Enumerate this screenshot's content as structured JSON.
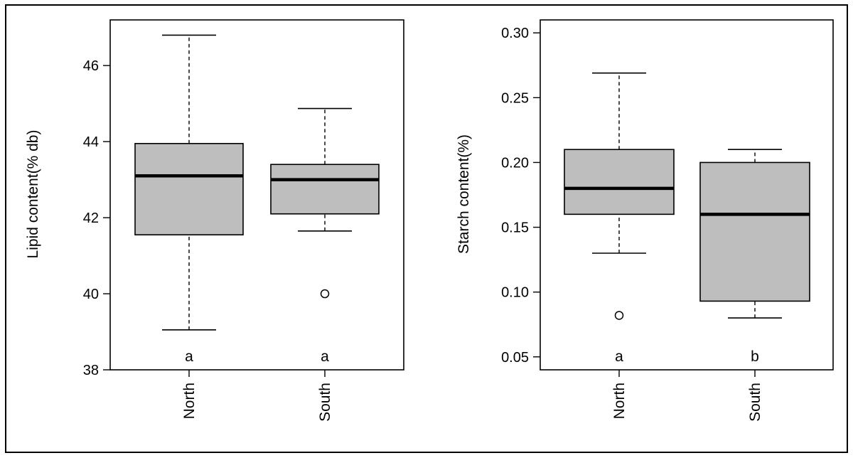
{
  "chart_data": [
    {
      "type": "boxplot",
      "ylabel": "Lipid content(% db)",
      "ylim": [
        38,
        47.2
      ],
      "yticks": [
        38,
        40,
        42,
        44,
        46
      ],
      "categories": [
        "North",
        "South"
      ],
      "box_color": "#bebebe",
      "boxes": [
        {
          "category": "North",
          "whisker_low": 39.05,
          "q1": 41.55,
          "median": 43.1,
          "q3": 43.95,
          "whisker_high": 46.8,
          "outliers": [],
          "group_letter": "a"
        },
        {
          "category": "South",
          "whisker_low": 41.65,
          "q1": 42.1,
          "median": 43.0,
          "q3": 43.4,
          "whisker_high": 44.87,
          "outliers": [
            40.0
          ],
          "group_letter": "a"
        }
      ]
    },
    {
      "type": "boxplot",
      "ylabel": "Starch content(%)",
      "ylim": [
        0.04,
        0.31
      ],
      "yticks": [
        0.05,
        0.1,
        0.15,
        0.2,
        0.25,
        0.3
      ],
      "ytick_labels": [
        "0.05",
        "0.10",
        "0.15",
        "0.20",
        "0.25",
        "0.30"
      ],
      "categories": [
        "North",
        "South"
      ],
      "box_color": "#bebebe",
      "boxes": [
        {
          "category": "North",
          "whisker_low": 0.13,
          "q1": 0.16,
          "median": 0.18,
          "q3": 0.21,
          "whisker_high": 0.269,
          "outliers": [
            0.082
          ],
          "group_letter": "a"
        },
        {
          "category": "South",
          "whisker_low": 0.08,
          "q1": 0.093,
          "median": 0.16,
          "q3": 0.2,
          "whisker_high": 0.21,
          "outliers": [],
          "group_letter": "b"
        }
      ]
    }
  ]
}
